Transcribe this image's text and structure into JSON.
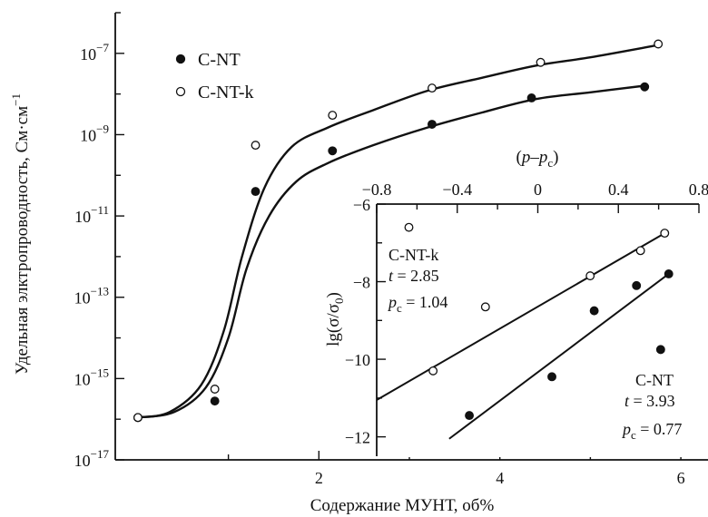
{
  "chart_data": [
    {
      "type": "scatter",
      "xlabel": "Содержание МУНТ, об%",
      "ylabel": "Удельная элктропроводность, См·см",
      "ylabel_sup": "−1",
      "yscale": "log",
      "xlim": [
        -0.25,
        6.3
      ],
      "ylim": [
        1e-17,
        1e-06
      ],
      "xticks": [
        2,
        4,
        6
      ],
      "yticks": [
        {
          "value": 1e-07,
          "base": "10",
          "exp": "−7"
        },
        {
          "value": 1e-09,
          "base": "10",
          "exp": "−9"
        },
        {
          "value": 1e-11,
          "base": "10",
          "exp": "−11"
        },
        {
          "value": 1e-13,
          "base": "10",
          "exp": "−13"
        },
        {
          "value": 1e-15,
          "base": "10",
          "exp": "−15"
        },
        {
          "value": 1e-17,
          "base": "10",
          "exp": "−17"
        }
      ],
      "legend": {
        "position": "top-left",
        "entries": [
          {
            "name": "C-NT",
            "marker": "filled"
          },
          {
            "name": "C-NT-k",
            "marker": "open"
          }
        ]
      },
      "series": [
        {
          "name": "C-NT",
          "marker": "filled",
          "points": [
            [
              0,
              1.1e-16
            ],
            [
              0.85,
              2.8e-16
            ],
            [
              1.3,
              4e-11
            ],
            [
              2.15,
              4e-10
            ],
            [
              3.25,
              1.8e-09
            ],
            [
              4.35,
              8e-09
            ],
            [
              5.6,
              1.5e-08
            ]
          ],
          "curve": [
            [
              0,
              1.1e-16
            ],
            [
              0.4,
              1.5e-16
            ],
            [
              0.75,
              6e-16
            ],
            [
              1.0,
              1e-14
            ],
            [
              1.2,
              5e-13
            ],
            [
              1.45,
              1e-11
            ],
            [
              1.75,
              7e-11
            ],
            [
              2.1,
              2e-10
            ],
            [
              2.6,
              5.5e-10
            ],
            [
              3.2,
              1.5e-09
            ],
            [
              3.8,
              3.5e-09
            ],
            [
              4.4,
              7.5e-09
            ],
            [
              5.0,
              1.1e-08
            ],
            [
              5.6,
              1.6e-08
            ]
          ]
        },
        {
          "name": "C-NT-k",
          "marker": "open",
          "points": [
            [
              0,
              1.1e-16
            ],
            [
              0.85,
              5.5e-16
            ],
            [
              1.3,
              5.5e-10
            ],
            [
              2.15,
              3e-09
            ],
            [
              3.25,
              1.4e-08
            ],
            [
              4.45,
              6e-08
            ],
            [
              5.75,
              1.7e-07
            ]
          ],
          "curve": [
            [
              0,
              1.1e-16
            ],
            [
              0.35,
              1.5e-16
            ],
            [
              0.7,
              7e-16
            ],
            [
              0.95,
              1.5e-14
            ],
            [
              1.15,
              1e-12
            ],
            [
              1.4,
              5e-11
            ],
            [
              1.7,
              5e-10
            ],
            [
              2.1,
              1.5e-09
            ],
            [
              2.6,
              4e-09
            ],
            [
              3.2,
              1.2e-08
            ],
            [
              3.8,
              2.5e-08
            ],
            [
              4.4,
              5e-08
            ],
            [
              5.0,
              8e-08
            ],
            [
              5.75,
              1.6e-07
            ]
          ]
        }
      ]
    },
    {
      "type": "scatter",
      "inset": true,
      "xlabel_parts": [
        "(",
        "p",
        "–",
        "p",
        "c",
        ")"
      ],
      "ylabel_parts": [
        "lg(σ/σ",
        "0",
        ")"
      ],
      "xlim": [
        -0.8,
        0.8
      ],
      "ylim": [
        -12.5,
        -6
      ],
      "xticks": [
        -0.8,
        -0.4,
        0,
        0.4,
        0.8
      ],
      "xtick_labels": [
        "−0.8",
        "−0.4",
        "0",
        "0.4",
        "0.8"
      ],
      "yticks": [
        -6,
        -8,
        -10,
        -12
      ],
      "ytick_labels": [
        "−6",
        "−8",
        "−10",
        "−12"
      ],
      "annotations": [
        {
          "series": "C-NT-k",
          "lines": [
            "C-NT-k",
            "t = 2.85",
            "p c = 1.04"
          ],
          "position": "upper-left"
        },
        {
          "series": "C-NT",
          "lines": [
            "C-NT",
            "t = 3.93",
            "p c = 0.77"
          ],
          "position": "lower-right"
        }
      ],
      "annotation_text": {
        "cntk_name": "C-NT-k",
        "cntk_t_sym": "t",
        "cntk_t_val": " = 2.85",
        "cntk_p_sym": "p",
        "cntk_p_sub": "c",
        "cntk_p_val": " = 1.04",
        "cnt_name": "C-NT",
        "cnt_t_sym": "t",
        "cnt_t_val": " = 3.93",
        "cnt_p_sym": "p",
        "cnt_p_sub": "c",
        "cnt_p_val": " = 0.77"
      },
      "series": [
        {
          "name": "C-NT-k",
          "marker": "open",
          "points": [
            [
              -0.64,
              -6.6
            ],
            [
              -0.52,
              -10.3
            ],
            [
              -0.26,
              -8.65
            ],
            [
              0.26,
              -7.85
            ],
            [
              0.51,
              -7.2
            ],
            [
              0.63,
              -6.75
            ]
          ],
          "fit": [
            [
              -0.8,
              -11.05
            ],
            [
              0.63,
              -6.75
            ]
          ]
        },
        {
          "name": "C-NT",
          "marker": "filled",
          "points": [
            [
              -0.34,
              -11.45
            ],
            [
              0.07,
              -10.45
            ],
            [
              0.28,
              -8.75
            ],
            [
              0.49,
              -8.1
            ],
            [
              0.61,
              -9.75
            ],
            [
              0.65,
              -7.8
            ]
          ],
          "fit": [
            [
              -0.44,
              -12.05
            ],
            [
              0.65,
              -7.8
            ]
          ]
        }
      ]
    }
  ]
}
